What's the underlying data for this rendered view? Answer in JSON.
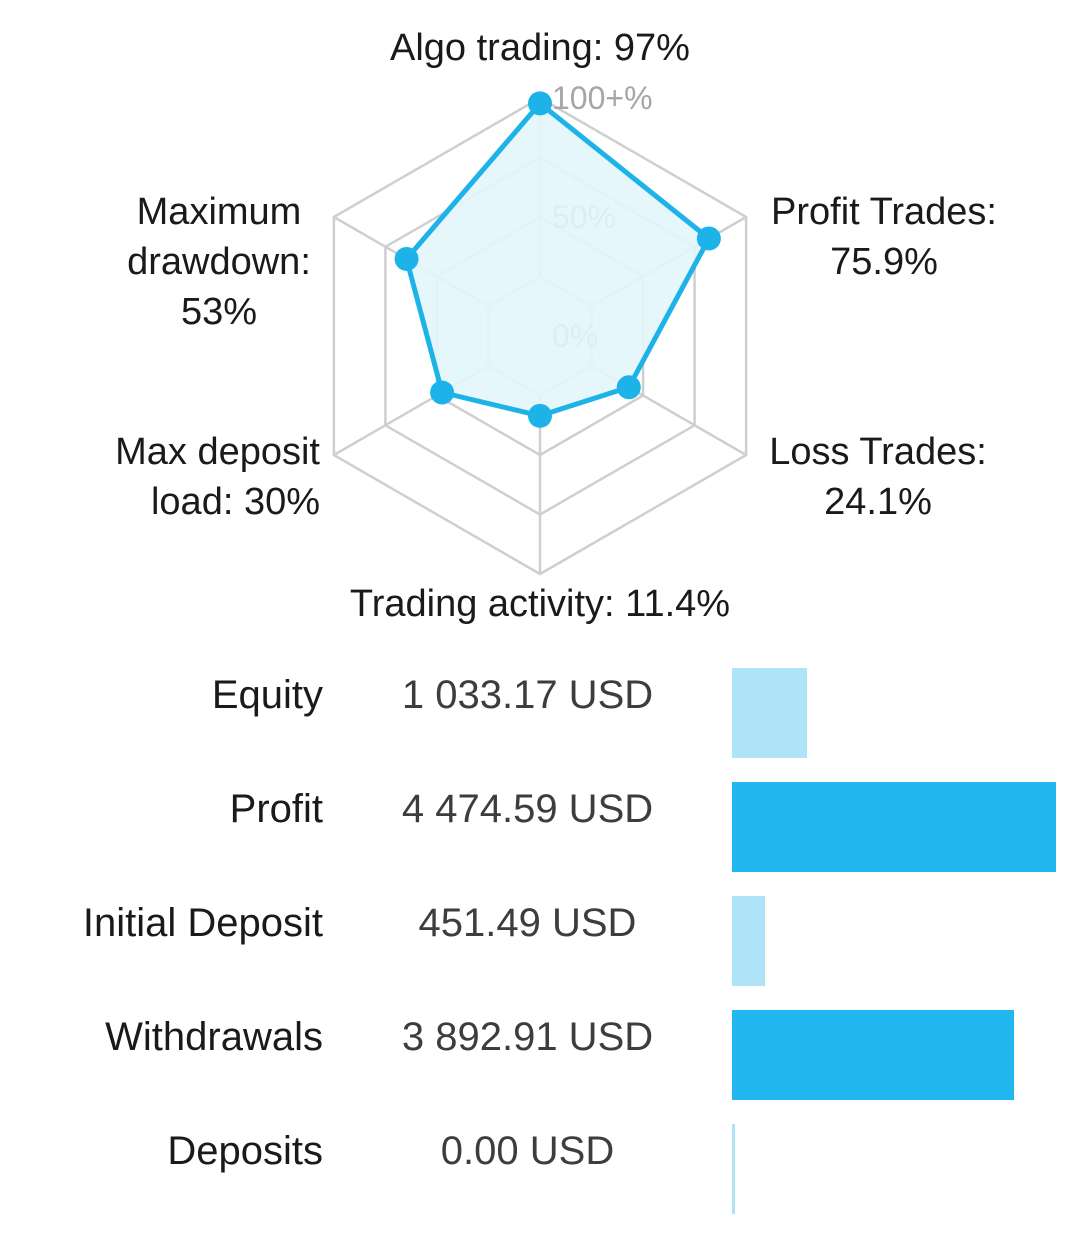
{
  "chart_data": [
    {
      "type": "radar",
      "ring_labels": [
        "100+%",
        "50%",
        "0%"
      ],
      "axes": [
        {
          "label_lines": [
            "Algo trading: 97%"
          ],
          "value": 97
        },
        {
          "label_lines": [
            "Profit Trades:",
            "75.9%"
          ],
          "value": 75.9
        },
        {
          "label_lines": [
            "Loss Trades:",
            "24.1%"
          ],
          "value": 24.1
        },
        {
          "label_lines": [
            "Trading activity: 11.4%"
          ],
          "value": 11.4
        },
        {
          "label_lines": [
            "Max deposit",
            "load: 30%"
          ],
          "value": 30
        },
        {
          "label_lines": [
            "Maximum",
            "drawdown:",
            "53%"
          ],
          "value": 53
        }
      ],
      "range": [
        0,
        100
      ],
      "colors": {
        "line": "#1eb3e8",
        "fill": "#e3f6fc",
        "grid": "#cfcfcf"
      }
    },
    {
      "type": "bar",
      "orientation": "horizontal",
      "categories": [
        "Equity",
        "Profit",
        "Initial Deposit",
        "Withdrawals",
        "Deposits"
      ],
      "value_labels": [
        "1 033.17 USD",
        "4 474.59 USD",
        "451.49 USD",
        "3 892.91 USD",
        "0.00 USD"
      ],
      "values": [
        1033.17,
        4474.59,
        451.49,
        3892.91,
        0.0
      ],
      "xlim": [
        0,
        4474.59
      ],
      "bar_colors": [
        "#aee3f8",
        "#22b8ef",
        "#aee3f8",
        "#22b8ef",
        "#aee3f8"
      ]
    }
  ]
}
